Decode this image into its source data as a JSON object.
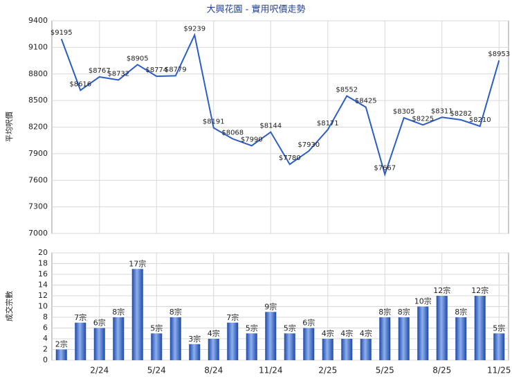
{
  "chart_data": [
    {
      "type": "line",
      "title": "大興花園 - 實用呎價走勢",
      "y_label": "平均呎價",
      "color": "#2b5cc8",
      "values": [
        9195,
        8616,
        8767,
        8732,
        8905,
        8774,
        8779,
        9239,
        8191,
        8068,
        7990,
        8144,
        7780,
        7930,
        8171,
        8552,
        8425,
        7667,
        8305,
        8225,
        8311,
        8282,
        8210,
        8953
      ],
      "value_labels": [
        "$9195",
        "$8616",
        "$8767",
        "$8732",
        "$8905",
        "$8774",
        "$8779",
        "$9239",
        "$8191",
        "$8068",
        "$7990",
        "$8144",
        "$7780",
        "$7930",
        "$8171",
        "$8552",
        "$8425",
        "$7667",
        "$8305",
        "$8225",
        "$8311",
        "$8282",
        "$8210",
        "$8953"
      ],
      "ylim": [
        7000,
        9400
      ],
      "yticks": [
        7000,
        7300,
        7600,
        7900,
        8200,
        8500,
        8800,
        9100,
        9400
      ],
      "grid": true
    },
    {
      "type": "bar",
      "y_label": "成交宗數",
      "color": "#3a66c4",
      "categories": [
        null,
        null,
        "2/24",
        null,
        null,
        "5/24",
        null,
        null,
        "8/24",
        null,
        null,
        "11/24",
        null,
        null,
        "2/25",
        null,
        null,
        "5/25",
        null,
        null,
        "8/25",
        null,
        null,
        "11/25"
      ],
      "values": [
        2,
        7,
        6,
        8,
        17,
        5,
        8,
        3,
        4,
        7,
        5,
        9,
        5,
        6,
        4,
        4,
        4,
        8,
        8,
        10,
        12,
        8,
        12,
        5
      ],
      "value_labels": [
        "2宗",
        "7宗",
        "6宗",
        "8宗",
        "17宗",
        "5宗",
        "8宗",
        "3宗",
        "4宗",
        "7宗",
        "5宗",
        "9宗",
        "5宗",
        "6宗",
        "4宗",
        "4宗",
        "4宗",
        "8宗",
        "8宗",
        "10宗",
        "12宗",
        "8宗",
        "12宗",
        "5宗"
      ],
      "ylim": [
        0,
        20
      ],
      "yticks": [
        0,
        2,
        4,
        6,
        8,
        10,
        12,
        14,
        16,
        18,
        20
      ],
      "grid": true
    }
  ]
}
